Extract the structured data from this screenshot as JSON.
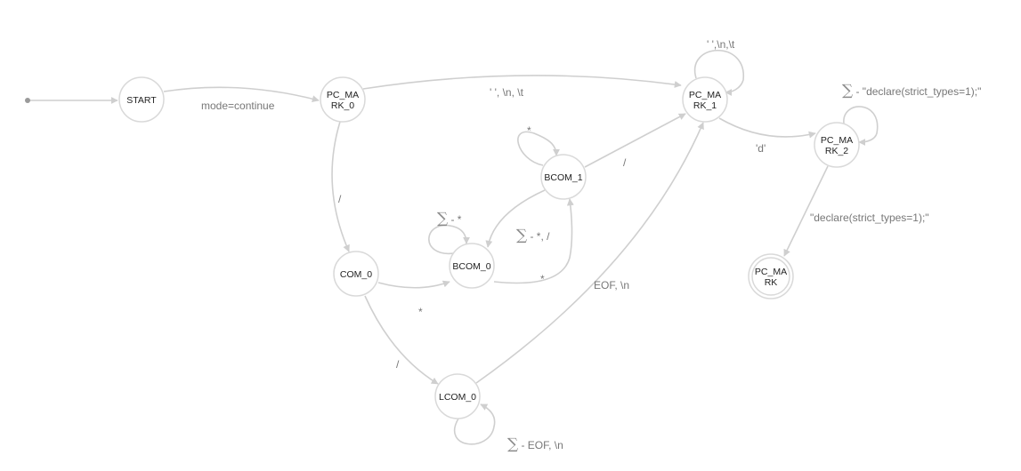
{
  "diagram": {
    "nodes": [
      {
        "id": "START",
        "lines": [
          "START"
        ],
        "final": false
      },
      {
        "id": "PC_MARK_0",
        "lines": [
          "PC_MA",
          "RK_0"
        ],
        "final": false
      },
      {
        "id": "PC_MARK_1",
        "lines": [
          "PC_MA",
          "RK_1"
        ],
        "final": false
      },
      {
        "id": "PC_MARK_2",
        "lines": [
          "PC_MA",
          "RK_2"
        ],
        "final": false
      },
      {
        "id": "PC_MARK",
        "lines": [
          "PC_MA",
          "RK"
        ],
        "final": true
      },
      {
        "id": "BCOM_1",
        "lines": [
          "BCOM_1"
        ],
        "final": false
      },
      {
        "id": "BCOM_0",
        "lines": [
          "BCOM_0"
        ],
        "final": false
      },
      {
        "id": "COM_0",
        "lines": [
          "COM_0"
        ],
        "final": false
      },
      {
        "id": "LCOM_0",
        "lines": [
          "LCOM_0"
        ],
        "final": false
      }
    ],
    "edges": [
      {
        "id": "e-init-start",
        "from": "",
        "to": "START",
        "label": "",
        "sigma": false
      },
      {
        "id": "e-start-pc0",
        "from": "START",
        "to": "PC_MARK_0",
        "label": "mode=continue",
        "sigma": false
      },
      {
        "id": "e-pc0-pc1",
        "from": "PC_MARK_0",
        "to": "PC_MARK_1",
        "label": "' ', \\n, \\t",
        "sigma": false
      },
      {
        "id": "e-pc1-self",
        "from": "PC_MARK_1",
        "to": "PC_MARK_1",
        "label": "' ',\\n,\\t",
        "sigma": false
      },
      {
        "id": "e-pc1-pc2",
        "from": "PC_MARK_1",
        "to": "PC_MARK_2",
        "label": "'d'",
        "sigma": false
      },
      {
        "id": "e-pc2-self",
        "from": "PC_MARK_2",
        "to": "PC_MARK_2",
        "label": " - \"declare(strict_types=1);\"",
        "sigma": true
      },
      {
        "id": "e-pc2-final",
        "from": "PC_MARK_2",
        "to": "PC_MARK",
        "label": "\"declare(strict_types=1);\"",
        "sigma": false
      },
      {
        "id": "e-pc0-com0",
        "from": "PC_MARK_0",
        "to": "COM_0",
        "label": "/",
        "sigma": false
      },
      {
        "id": "e-bcom1-self",
        "from": "BCOM_1",
        "to": "BCOM_1",
        "label": "*",
        "sigma": false
      },
      {
        "id": "e-bcom1-pc1",
        "from": "BCOM_1",
        "to": "PC_MARK_1",
        "label": "/",
        "sigma": false
      },
      {
        "id": "e-bcom1-bcom0",
        "from": "BCOM_1",
        "to": "BCOM_0",
        "label": " - *, /",
        "sigma": true
      },
      {
        "id": "e-bcom0-self",
        "from": "BCOM_0",
        "to": "BCOM_0",
        "label": " - *",
        "sigma": true
      },
      {
        "id": "e-bcom0-bcom1",
        "from": "BCOM_0",
        "to": "BCOM_1",
        "label": "*",
        "sigma": false
      },
      {
        "id": "e-com0-bcom0",
        "from": "COM_0",
        "to": "BCOM_0",
        "label": "*",
        "sigma": false
      },
      {
        "id": "e-com0-lcom0",
        "from": "COM_0",
        "to": "LCOM_0",
        "label": "/",
        "sigma": false
      },
      {
        "id": "e-lcom0-pc1",
        "from": "LCOM_0",
        "to": "PC_MARK_1",
        "label": "EOF, \\n",
        "sigma": false
      },
      {
        "id": "e-lcom0-self",
        "from": "LCOM_0",
        "to": "LCOM_0",
        "label": " - EOF, \\n",
        "sigma": true
      }
    ],
    "colors": {
      "node_stroke": "#d9d9d9",
      "edge": "#cfcfcf",
      "label": "#777777",
      "text": "#222222"
    },
    "sigma_symbol": "∑"
  }
}
